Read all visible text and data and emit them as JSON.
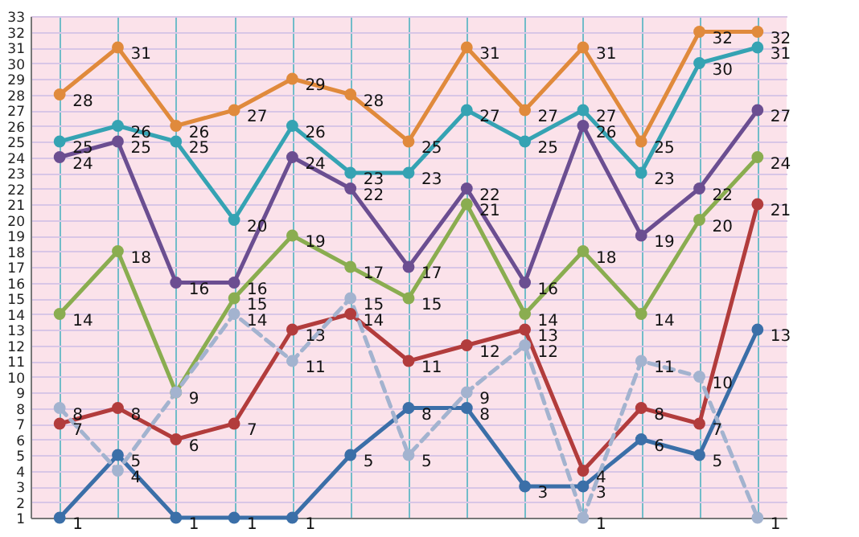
{
  "chart_data": {
    "type": "line",
    "categories": [
      null,
      null,
      null,
      null,
      null,
      null,
      null,
      null,
      null,
      null,
      null,
      null,
      null
    ],
    "ylim": [
      1,
      33
    ],
    "yticks": [
      1,
      2,
      3,
      4,
      5,
      6,
      7,
      8,
      9,
      10,
      11,
      12,
      13,
      14,
      15,
      16,
      17,
      18,
      19,
      20,
      21,
      22,
      23,
      24,
      25,
      26,
      27,
      28,
      29,
      30,
      31,
      32,
      33
    ],
    "grid": true,
    "marker": "circle",
    "data_labels": true,
    "series": [
      {
        "color": "#e08a3c",
        "values": [
          28,
          31,
          26,
          27,
          29,
          28,
          25,
          31,
          27,
          31,
          25,
          32,
          32
        ]
      },
      {
        "color": "#35a3b3",
        "values": [
          25,
          26,
          25,
          20,
          26,
          23,
          23,
          27,
          25,
          27,
          23,
          30,
          31
        ]
      },
      {
        "color": "#6b4e91",
        "values": [
          24,
          25,
          16,
          16,
          24,
          22,
          17,
          22,
          16,
          26,
          19,
          22,
          27
        ]
      },
      {
        "color": "#8aad50",
        "values": [
          14,
          18,
          9,
          15,
          19,
          17,
          15,
          21,
          14,
          18,
          14,
          20,
          24
        ]
      },
      {
        "color": "#b23c3c",
        "values": [
          7,
          8,
          6,
          7,
          13,
          14,
          11,
          12,
          13,
          4,
          8,
          7,
          21
        ]
      },
      {
        "color": "#3b6fa8",
        "values": [
          1,
          5,
          1,
          1,
          1,
          5,
          8,
          8,
          3,
          3,
          6,
          5,
          13
        ]
      },
      {
        "color": "#a3b3cf",
        "values": [
          8,
          4,
          9,
          14,
          11,
          15,
          5,
          9,
          12,
          1,
          11,
          10,
          1
        ],
        "value_labels": [
          "8",
          "4",
          null,
          "14",
          "11",
          "15",
          "5",
          "9",
          "12",
          "1",
          "11",
          "10",
          "1"
        ],
        "line_style": "dashed"
      }
    ]
  }
}
